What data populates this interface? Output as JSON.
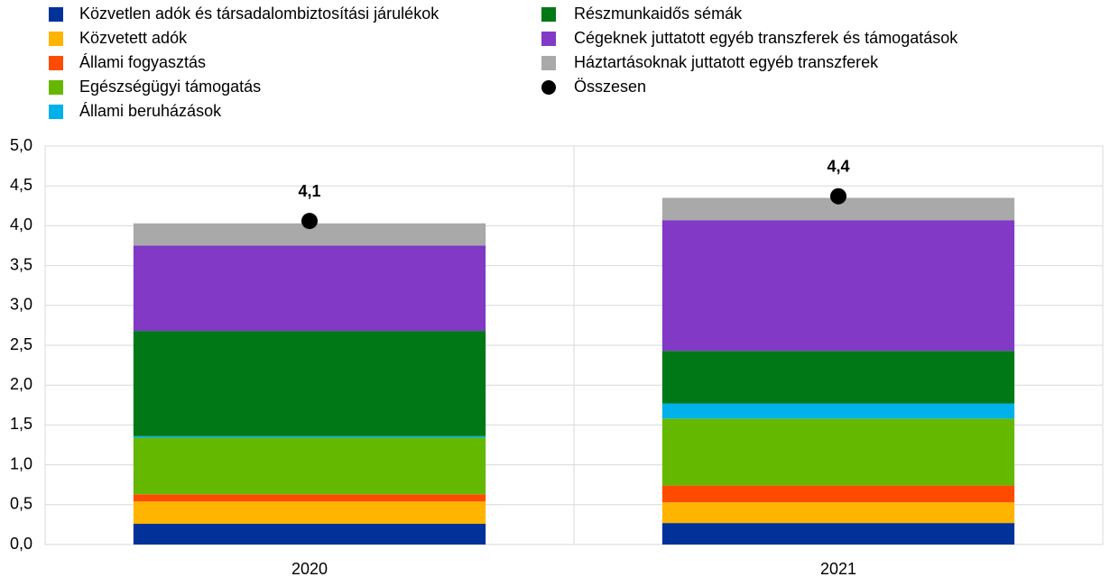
{
  "chart_data": {
    "type": "bar",
    "stacked": true,
    "categories": [
      "2020",
      "2021"
    ],
    "series": [
      {
        "name": "Közvetlen adók és társadalombiztosítási járulékok",
        "color": "#003299",
        "values": [
          0.26,
          0.27
        ]
      },
      {
        "name": "Közvetett adók",
        "color": "#ffb400",
        "values": [
          0.28,
          0.26
        ]
      },
      {
        "name": "Állami fogyasztás",
        "color": "#ff4b00",
        "values": [
          0.09,
          0.21
        ]
      },
      {
        "name": "Egészségügyi támogatás",
        "color": "#65b800",
        "values": [
          0.71,
          0.84
        ]
      },
      {
        "name": "Állami beruházások",
        "color": "#00b1ea",
        "values": [
          0.02,
          0.19
        ]
      },
      {
        "name": "Részmunkaidős sémák",
        "color": "#007816",
        "values": [
          1.32,
          0.66
        ]
      },
      {
        "name": "Cégeknek juttatott egyéb transzferek és támogatások",
        "color": "#8139c6",
        "values": [
          1.07,
          1.64
        ]
      },
      {
        "name": "Háztartásoknak juttatott egyéb transzferek",
        "color": "#a9a9a9",
        "values": [
          0.28,
          0.28
        ]
      }
    ],
    "total": {
      "name": "Összesen",
      "color": "#000000",
      "values": [
        4.06,
        4.37
      ],
      "value_labels": [
        "4,1",
        "4,4"
      ]
    },
    "ylim": [
      0,
      5
    ],
    "yticks": [
      {
        "value": 0,
        "label": "0,0"
      },
      {
        "value": 0.5,
        "label": "0,5"
      },
      {
        "value": 1,
        "label": "1,0"
      },
      {
        "value": 1.5,
        "label": "1,5"
      },
      {
        "value": 2,
        "label": "2,0"
      },
      {
        "value": 2.5,
        "label": "2,5"
      },
      {
        "value": 3,
        "label": "3,0"
      },
      {
        "value": 3.5,
        "label": "3,5"
      },
      {
        "value": 4,
        "label": "4,0"
      },
      {
        "value": 4.5,
        "label": "4,5"
      },
      {
        "value": 5,
        "label": "5,0"
      }
    ],
    "grid": true
  }
}
